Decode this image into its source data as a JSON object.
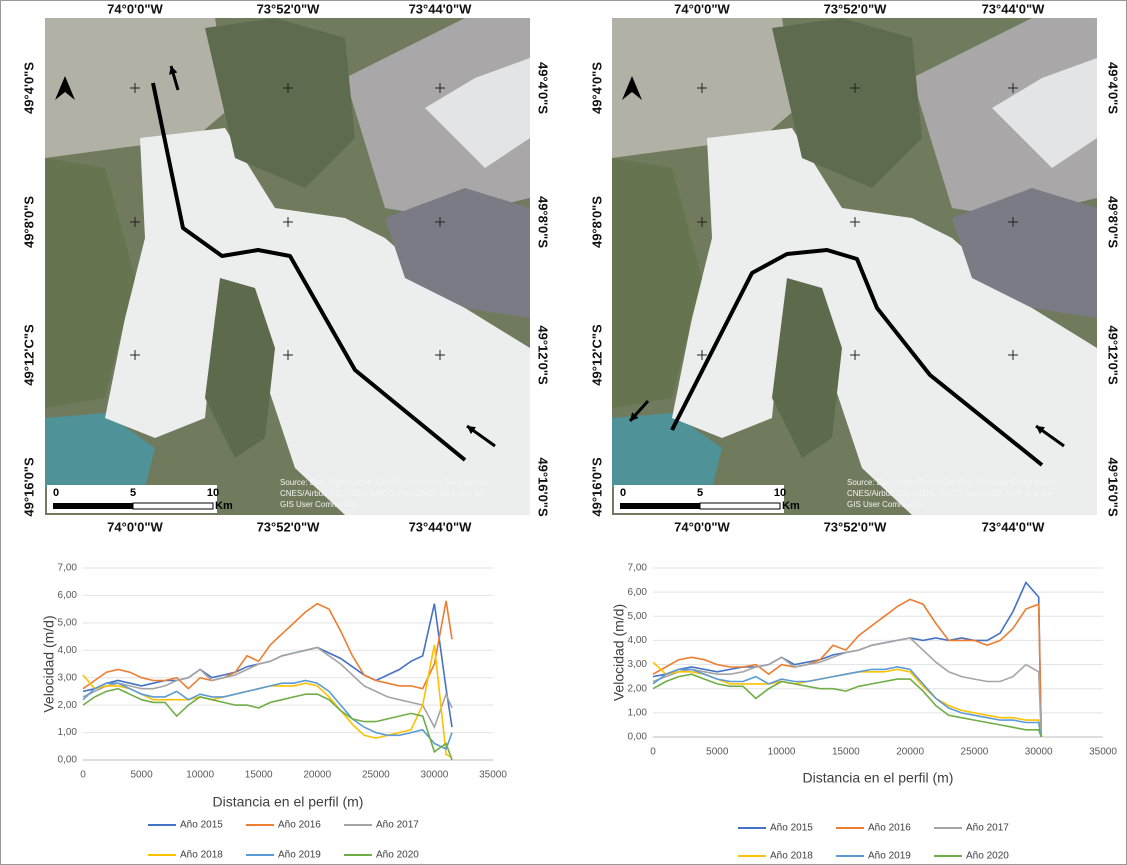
{
  "maps": [
    {
      "top_labels": [
        "74°0'0\"W",
        "73°52'0\"W",
        "73°44'0\"W"
      ],
      "bottom_labels": [
        "74°0'0\"W",
        "73°52'0\"W",
        "73°44'0\"W"
      ],
      "left_labels": [
        "49°4'0\"S",
        "49°8'0\"S",
        "49°12'C\"S",
        "49°16'0\"S"
      ],
      "right_labels": [
        "49°4'0\"S",
        "49°8'0\"S",
        "49°12'0\"S",
        "49°16'0\"S"
      ],
      "scale": [
        "0",
        "5",
        "10",
        "Km"
      ],
      "attribution": [
        "Source: Esri, DigitalGlobe, GeoEye, Earthstar Geographics,",
        "CNES/Airbus DS, USDA, USGS, AeroGRID, IGN, and the",
        "GIS User Community"
      ]
    },
    {
      "top_labels": [
        "74°0'0\"W",
        "73°52'0\"W",
        "73°44'0\"W"
      ],
      "bottom_labels": [
        "74°0'0\"W",
        "73°52'0\"W",
        "73°44'0\"W"
      ],
      "left_labels": [
        "49°4'0\"S",
        "49°8'0\"S",
        "49°12'C\"S",
        "49°16'0\"S"
      ],
      "right_labels": [
        "49°4'0\"S",
        "49°8'0\"S",
        "49°12'0\"S",
        "49°16'0\"S"
      ],
      "scale": [
        "0",
        "5",
        "10",
        "Km"
      ],
      "attribution": [
        "Source: Esri, DigitalGlobe, GeoEye, Earthstar Geographics,",
        "CNES/Airbus DS, USDA, USGS, AeroGRID, IGN, and the",
        "GIS User Community"
      ]
    }
  ],
  "chart_data": [
    {
      "type": "line",
      "x_label": "Distancia en el perfil (m)",
      "y_label": "Velocidad (m/d)",
      "x": [
        0,
        1000,
        2000,
        3000,
        4000,
        5000,
        6000,
        7000,
        8000,
        9000,
        10000,
        11000,
        12000,
        13000,
        14000,
        15000,
        16000,
        17000,
        18000,
        19000,
        20000,
        21000,
        22000,
        23000,
        24000,
        25000,
        26000,
        27000,
        28000,
        29000,
        30000,
        31000,
        31500
      ],
      "xlim": [
        0,
        35000
      ],
      "xticks": [
        0,
        5000,
        10000,
        15000,
        20000,
        25000,
        30000,
        35000
      ],
      "ylim": [
        0,
        7
      ],
      "yticks": [
        {
          "value": 0,
          "label": "0,00"
        },
        {
          "value": 1,
          "label": "1,00"
        },
        {
          "value": 2,
          "label": "2,00"
        },
        {
          "value": 3,
          "label": "3,00"
        },
        {
          "value": 4,
          "label": "4,00"
        },
        {
          "value": 5,
          "label": "5,00"
        },
        {
          "value": 6,
          "label": "6,00"
        },
        {
          "value": 7,
          "label": "7,00"
        }
      ],
      "grid": true,
      "series": [
        {
          "name": "Año 2015",
          "color": "#4472c4",
          "values": [
            2.5,
            2.6,
            2.8,
            2.9,
            2.8,
            2.7,
            2.8,
            2.9,
            2.9,
            3.0,
            3.3,
            3.0,
            3.1,
            3.2,
            3.4,
            3.5,
            3.6,
            3.8,
            3.9,
            4.0,
            4.1,
            3.9,
            3.7,
            3.4,
            3.1,
            2.9,
            3.1,
            3.3,
            3.6,
            3.8,
            5.7,
            2.6,
            1.2
          ]
        },
        {
          "name": "Año 2016",
          "color": "#ed7d31",
          "values": [
            2.6,
            2.9,
            3.2,
            3.3,
            3.2,
            3.0,
            2.9,
            2.9,
            3.0,
            2.6,
            3.0,
            2.9,
            3.0,
            3.2,
            3.8,
            3.6,
            4.2,
            4.6,
            5.0,
            5.4,
            5.7,
            5.5,
            4.7,
            3.8,
            3.1,
            2.9,
            2.8,
            2.7,
            2.7,
            2.6,
            3.5,
            5.8,
            4.4
          ]
        },
        {
          "name": "Año 2017",
          "color": "#a5a5a5",
          "values": [
            2.3,
            2.5,
            2.7,
            2.8,
            2.7,
            2.6,
            2.6,
            2.7,
            2.9,
            3.0,
            3.3,
            2.9,
            3.0,
            3.1,
            3.3,
            3.5,
            3.6,
            3.8,
            3.9,
            4.0,
            4.1,
            3.8,
            3.5,
            3.1,
            2.7,
            2.5,
            2.3,
            2.2,
            2.1,
            2.0,
            1.2,
            2.4,
            1.9
          ]
        },
        {
          "name": "Año 2018",
          "color": "#ffc000",
          "values": [
            3.1,
            2.6,
            2.7,
            2.7,
            2.6,
            2.4,
            2.2,
            2.2,
            2.2,
            2.2,
            2.3,
            2.2,
            2.3,
            2.4,
            2.5,
            2.6,
            2.7,
            2.7,
            2.7,
            2.8,
            2.7,
            2.3,
            1.8,
            1.3,
            0.9,
            0.8,
            0.9,
            1.0,
            1.1,
            2.0,
            4.2,
            0.2,
            0.1
          ]
        },
        {
          "name": "Año 2019",
          "color": "#5b9bd5",
          "values": [
            2.2,
            2.6,
            2.8,
            2.8,
            2.6,
            2.4,
            2.3,
            2.3,
            2.5,
            2.2,
            2.4,
            2.3,
            2.3,
            2.4,
            2.5,
            2.6,
            2.7,
            2.8,
            2.8,
            2.9,
            2.8,
            2.5,
            2.0,
            1.5,
            1.2,
            1.0,
            0.9,
            0.9,
            1.0,
            1.1,
            0.6,
            0.4,
            1.0
          ]
        },
        {
          "name": "Año 2020",
          "color": "#70ad47",
          "values": [
            2.0,
            2.3,
            2.5,
            2.6,
            2.4,
            2.2,
            2.1,
            2.1,
            1.6,
            2.0,
            2.3,
            2.2,
            2.1,
            2.0,
            2.0,
            1.9,
            2.1,
            2.2,
            2.3,
            2.4,
            2.4,
            2.2,
            1.8,
            1.5,
            1.4,
            1.4,
            1.5,
            1.6,
            1.7,
            1.6,
            0.3,
            0.6,
            0.0
          ]
        }
      ]
    },
    {
      "type": "line",
      "x_label": "Distancia en el perfil (m)",
      "y_label": "Velocidad (m/d)",
      "x": [
        0,
        1000,
        2000,
        3000,
        4000,
        5000,
        6000,
        7000,
        8000,
        9000,
        10000,
        11000,
        12000,
        13000,
        14000,
        15000,
        16000,
        17000,
        18000,
        19000,
        20000,
        21000,
        22000,
        23000,
        24000,
        25000,
        26000,
        27000,
        28000,
        29000,
        30000,
        30200
      ],
      "xlim": [
        0,
        35000
      ],
      "xticks": [
        0,
        5000,
        10000,
        15000,
        20000,
        25000,
        30000,
        35000
      ],
      "ylim": [
        0,
        7
      ],
      "yticks": [
        {
          "value": 0,
          "label": "0,00"
        },
        {
          "value": 1,
          "label": "1,00"
        },
        {
          "value": 2,
          "label": "2,00"
        },
        {
          "value": 3,
          "label": "3,00"
        },
        {
          "value": 4,
          "label": "4,00"
        },
        {
          "value": 5,
          "label": "5,00"
        },
        {
          "value": 6,
          "label": "6,00"
        },
        {
          "value": 7,
          "label": "7,00"
        }
      ],
      "grid": true,
      "series": [
        {
          "name": "Año 2015",
          "color": "#4472c4",
          "values": [
            2.5,
            2.6,
            2.8,
            2.9,
            2.8,
            2.7,
            2.8,
            2.9,
            2.9,
            3.0,
            3.3,
            3.0,
            3.1,
            3.2,
            3.4,
            3.5,
            3.6,
            3.8,
            3.9,
            4.0,
            4.1,
            4.0,
            4.1,
            4.0,
            4.1,
            4.0,
            4.0,
            4.3,
            5.2,
            6.4,
            5.8,
            0
          ]
        },
        {
          "name": "Año 2016",
          "color": "#ed7d31",
          "values": [
            2.6,
            2.9,
            3.2,
            3.3,
            3.2,
            3.0,
            2.9,
            2.9,
            3.0,
            2.6,
            3.0,
            2.9,
            3.0,
            3.2,
            3.8,
            3.6,
            4.2,
            4.6,
            5.0,
            5.4,
            5.7,
            5.5,
            4.7,
            4.0,
            4.0,
            4.0,
            3.8,
            4.0,
            4.5,
            5.3,
            5.5,
            0
          ]
        },
        {
          "name": "Año 2017",
          "color": "#a5a5a5",
          "values": [
            2.3,
            2.5,
            2.7,
            2.8,
            2.7,
            2.6,
            2.6,
            2.7,
            2.9,
            3.0,
            3.3,
            2.9,
            3.0,
            3.1,
            3.3,
            3.5,
            3.6,
            3.8,
            3.9,
            4.0,
            4.1,
            3.6,
            3.1,
            2.7,
            2.5,
            2.4,
            2.3,
            2.3,
            2.5,
            3.0,
            2.7,
            0
          ]
        },
        {
          "name": "Año 2018",
          "color": "#ffc000",
          "values": [
            3.1,
            2.6,
            2.7,
            2.7,
            2.6,
            2.4,
            2.2,
            2.2,
            2.2,
            2.2,
            2.3,
            2.2,
            2.3,
            2.4,
            2.5,
            2.6,
            2.7,
            2.7,
            2.7,
            2.8,
            2.7,
            2.1,
            1.6,
            1.3,
            1.1,
            1.0,
            0.9,
            0.8,
            0.8,
            0.7,
            0.7,
            0
          ]
        },
        {
          "name": "Año 2019",
          "color": "#5b9bd5",
          "values": [
            2.2,
            2.6,
            2.8,
            2.8,
            2.6,
            2.4,
            2.3,
            2.3,
            2.5,
            2.2,
            2.4,
            2.3,
            2.3,
            2.4,
            2.5,
            2.6,
            2.7,
            2.8,
            2.8,
            2.9,
            2.8,
            2.2,
            1.6,
            1.2,
            1.0,
            0.9,
            0.8,
            0.7,
            0.7,
            0.6,
            0.6,
            0
          ]
        },
        {
          "name": "Año 2020",
          "color": "#70ad47",
          "values": [
            2.0,
            2.3,
            2.5,
            2.6,
            2.4,
            2.2,
            2.1,
            2.1,
            1.6,
            2.0,
            2.3,
            2.2,
            2.1,
            2.0,
            2.0,
            1.9,
            2.1,
            2.2,
            2.3,
            2.4,
            2.4,
            1.9,
            1.3,
            0.9,
            0.8,
            0.7,
            0.6,
            0.5,
            0.4,
            0.3,
            0.3,
            0
          ]
        }
      ]
    }
  ]
}
